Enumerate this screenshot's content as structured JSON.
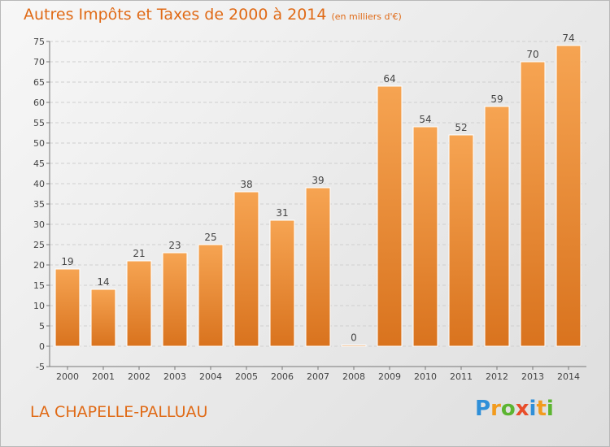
{
  "title": "Autres Impôts et Taxes de 2000 à 2014",
  "subtitle": "(en milliers d'€)",
  "commune": "LA CHAPELLE-PALLUAU",
  "logo": {
    "letters": [
      "P",
      "r",
      "o",
      "x",
      "i",
      "t",
      "i"
    ],
    "colors": [
      "#2f8fd8",
      "#f29b1d",
      "#5cb531",
      "#e84d2a",
      "#2f8fd8",
      "#f29b1d",
      "#5cb531"
    ]
  },
  "chart_data": {
    "type": "bar",
    "categories": [
      "2000",
      "2001",
      "2002",
      "2003",
      "2004",
      "2005",
      "2006",
      "2007",
      "2008",
      "2009",
      "2010",
      "2011",
      "2012",
      "2013",
      "2014"
    ],
    "values": [
      19,
      14,
      21,
      23,
      25,
      38,
      31,
      39,
      0,
      64,
      54,
      52,
      59,
      70,
      74
    ],
    "title": "Autres Impôts et Taxes de 2000 à 2014",
    "subtitle": "(en milliers d'€)",
    "ylim": [
      -5,
      75
    ],
    "yticks": [
      -5,
      0,
      5,
      10,
      15,
      20,
      25,
      30,
      35,
      40,
      45,
      50,
      55,
      60,
      65,
      70,
      75
    ],
    "grid": true,
    "colors": {
      "bar_top": "#f6a452",
      "bar_bottom": "#d9731e",
      "grid": "#cfcfcf",
      "title": "#e06a16",
      "label": "#444444"
    }
  }
}
